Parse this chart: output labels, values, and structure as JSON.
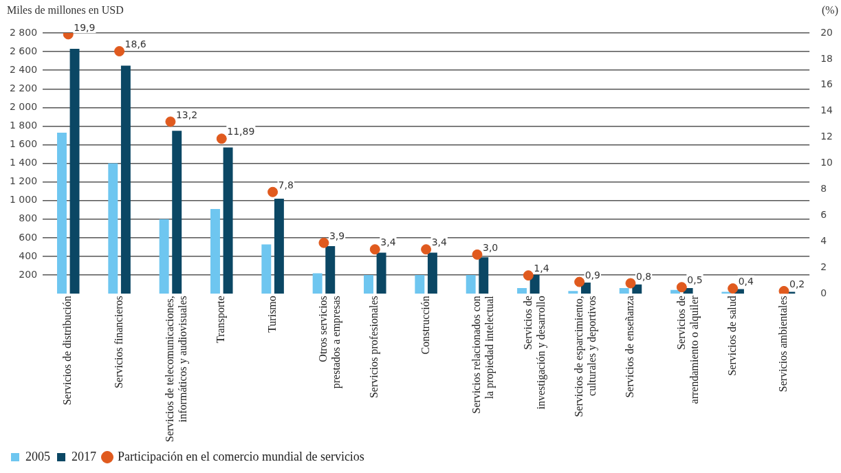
{
  "chart_data": {
    "type": "bar",
    "ylabel": "Miles de millones en USD",
    "y2label": "(%)",
    "categories": [
      "Servicios de distribución",
      "Servicios financieros",
      "Servicios de telecomunicaciones, informáticos y audiovisuales",
      "Transporte",
      "Turismo",
      "Otros servicios prestados a empresas",
      "Servicios profesionales",
      "Construcción",
      "Servicios relacionados con la propiedad intelectual",
      "Servicios de investigación y desarrollo",
      "Servicios de esparcimiento, culturales y deportivos",
      "Servicios de enseñanza",
      "Servicios de arrendamiento o alquiler",
      "Servicios de salud",
      "Servicios ambientales"
    ],
    "series": [
      {
        "name": "2005",
        "color": "#6ec6f0",
        "values": [
          1730,
          1400,
          800,
          910,
          530,
          220,
          200,
          200,
          200,
          60,
          30,
          60,
          40,
          20,
          null
        ]
      },
      {
        "name": "2017",
        "color": "#0b4764",
        "values": [
          2630,
          2450,
          1750,
          1570,
          1020,
          510,
          440,
          440,
          390,
          200,
          120,
          100,
          60,
          50,
          20
        ]
      },
      {
        "name": "Participación en el comercio mundial de servicios",
        "type": "scatter",
        "axis": "y2",
        "color": "#e05a1e",
        "marker": "circle",
        "x": [
          "Servicios de distribución",
          "Servicios financieros",
          "Servicios de telecomunicaciones, informáticos y audiovisuales",
          "Transporte",
          "Turismo",
          "Otros servicios prestados a empresas",
          "Servicios profesionales",
          "Construcción",
          "Servicios relacionados con la propiedad intelectual",
          "Servicios de investigación y desarrollo",
          "Servicios de esparcimiento, culturales y deportivos",
          "Servicios de enseñanza",
          "Servicios de arrendamiento o alquiler",
          "Servicios de salud",
          "Servicios ambientales"
        ],
        "values": [
          19.9,
          18.6,
          13.2,
          11.89,
          7.8,
          3.9,
          3.4,
          3.4,
          3.0,
          1.4,
          0.9,
          0.8,
          0.5,
          0.4,
          0.2
        ],
        "value_labels": [
          "19,9",
          "18,6",
          "13,2",
          "11,89",
          "7,8",
          "3,9",
          "3,4",
          "3,4",
          "3,0",
          "1,4",
          "0,9",
          "0,8",
          "0,5",
          "0,4",
          "0,2"
        ]
      }
    ],
    "ylim": [
      0,
      2800
    ],
    "yticks": [
      {
        "value": 200,
        "label": "200"
      },
      {
        "value": 400,
        "label": "400"
      },
      {
        "value": 600,
        "label": "600"
      },
      {
        "value": 800,
        "label": "800"
      },
      {
        "value": 1000,
        "label": "1 000"
      },
      {
        "value": 1200,
        "label": "1 200"
      },
      {
        "value": 1400,
        "label": "1 400"
      },
      {
        "value": 1600,
        "label": "1 600"
      },
      {
        "value": 1800,
        "label": "1 800"
      },
      {
        "value": 2000,
        "label": "2 000"
      },
      {
        "value": 2200,
        "label": "2 200"
      },
      {
        "value": 2400,
        "label": "2 400"
      },
      {
        "value": 2600,
        "label": "2 600"
      },
      {
        "value": 2800,
        "label": "2 800"
      }
    ],
    "y2lim": [
      0,
      20
    ],
    "y2ticks": [
      0,
      2,
      4,
      6,
      8,
      10,
      12,
      14,
      16,
      18,
      20
    ],
    "grid": "y",
    "legend": "bottom left"
  }
}
